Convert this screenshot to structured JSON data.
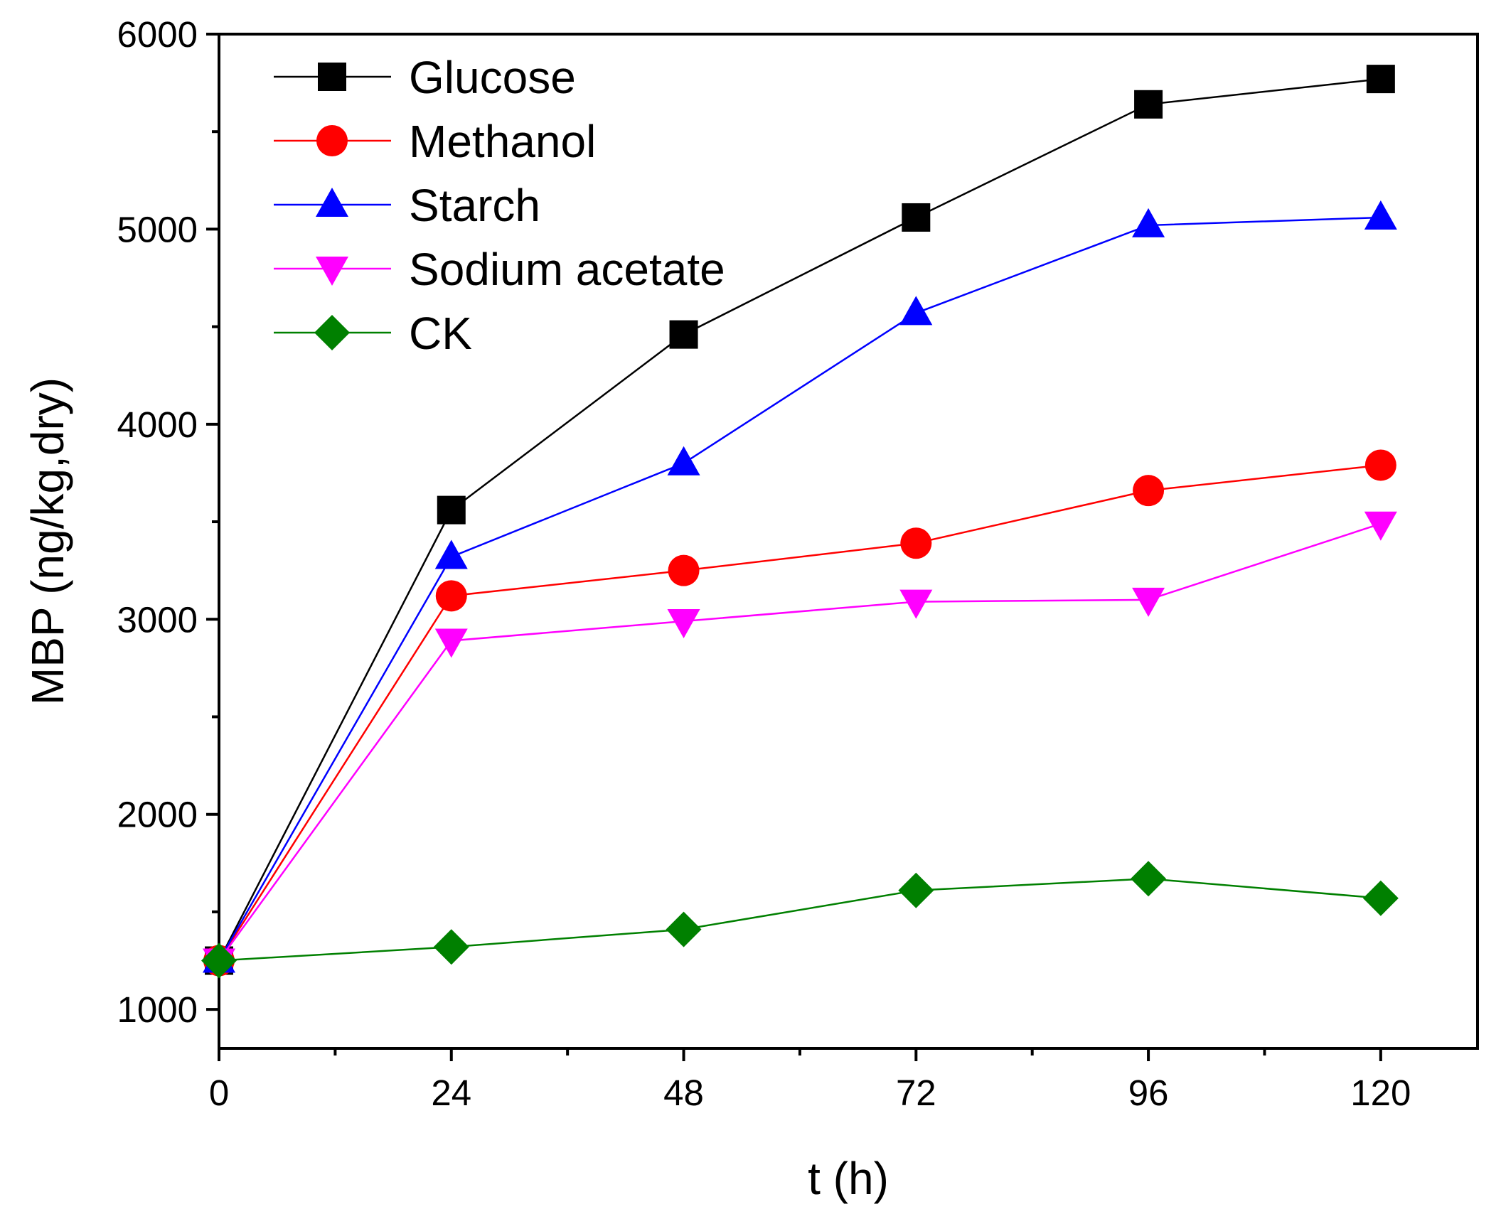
{
  "chart_data": {
    "type": "line",
    "title": "",
    "xlabel": "t (h)",
    "ylabel": "MBP (ng/kg,dry)",
    "xlim": [
      0,
      130
    ],
    "ylim": [
      800,
      6000
    ],
    "x_ticks": [
      0,
      24,
      48,
      72,
      96,
      120
    ],
    "x_minor_ticks": [
      12,
      36,
      60,
      84,
      108
    ],
    "y_ticks": [
      1000,
      2000,
      3000,
      4000,
      5000,
      6000
    ],
    "y_minor_ticks": [
      1500,
      2500,
      3500,
      4500,
      5500
    ],
    "grid": false,
    "legend_position": "top-left",
    "x": [
      0,
      24,
      48,
      72,
      96,
      120
    ],
    "series": [
      {
        "name": "Glucose",
        "color": "#000000",
        "marker": "square",
        "values": [
          1250,
          3560,
          4460,
          5060,
          5640,
          5770
        ]
      },
      {
        "name": "Methanol",
        "color": "#ff0000",
        "marker": "circle",
        "values": [
          1250,
          3120,
          3250,
          3390,
          3660,
          3790
        ]
      },
      {
        "name": "Starch",
        "color": "#0000ff",
        "marker": "triangle-up",
        "values": [
          1250,
          3320,
          3800,
          4570,
          5020,
          5060
        ]
      },
      {
        "name": "Sodium acetate",
        "color": "#ff00ff",
        "marker": "triangle-down",
        "values": [
          1250,
          2890,
          2990,
          3090,
          3100,
          3490
        ]
      },
      {
        "name": "CK",
        "color": "#008000",
        "marker": "diamond",
        "values": [
          1250,
          1320,
          1410,
          1610,
          1670,
          1570
        ]
      }
    ]
  }
}
